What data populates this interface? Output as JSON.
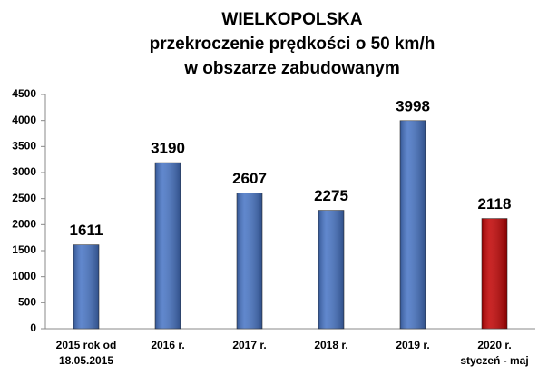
{
  "chart_data": {
    "type": "bar",
    "title": [
      "WIELKOPOLSKA",
      "przekroczenie prędkości o 50 km/h",
      "w obszarze zabudowanym"
    ],
    "categories": [
      [
        "2015 rok od",
        "18.05.2015"
      ],
      [
        "2016 r."
      ],
      [
        "2017 r."
      ],
      [
        "2018 r."
      ],
      [
        "2019 r."
      ],
      [
        "2020 r.",
        "styczeń - maj"
      ]
    ],
    "values": [
      1611,
      3190,
      2607,
      2275,
      3998,
      2118
    ],
    "colors": [
      "#4472c4",
      "#4472c4",
      "#4472c4",
      "#4472c4",
      "#4472c4",
      "#c00000"
    ],
    "ylim": [
      0,
      4500
    ],
    "yticks": [
      0,
      500,
      1000,
      1500,
      2000,
      2500,
      3000,
      3500,
      4000,
      4500
    ],
    "grid": false
  }
}
